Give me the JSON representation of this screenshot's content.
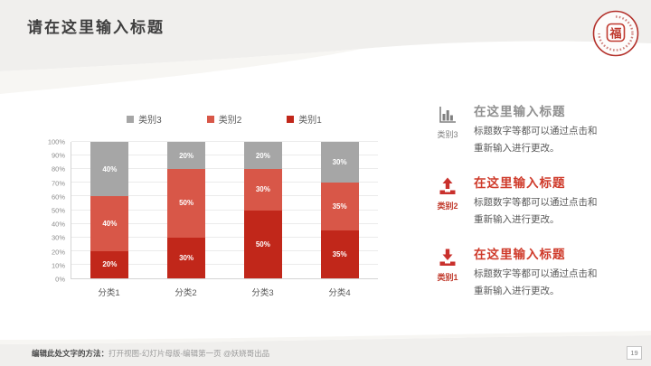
{
  "slide": {
    "title": "请在这里输入标题",
    "page_number": "19",
    "footer": {
      "bold": "编辑此处文字的方法：",
      "rest": "打开视图-幻灯片母版-编辑第一页 @妖娆哥出品"
    },
    "logo": {
      "char": "福"
    }
  },
  "colors": {
    "accent_red": "#cf3a2a",
    "dark_red": "#c1271a",
    "light_red": "#d85748",
    "gray": "#a6a6a6",
    "header_band": "#f0efed"
  },
  "chart_data": {
    "type": "bar",
    "stacked": true,
    "percent_stacked": true,
    "title": "",
    "xlabel": "",
    "ylabel": "",
    "categories": [
      "分类1",
      "分类2",
      "分类3",
      "分类4"
    ],
    "series": [
      {
        "name": "类别1",
        "color": "#c1271a",
        "values": [
          20,
          30,
          50,
          35
        ]
      },
      {
        "name": "类别2",
        "color": "#d85748",
        "values": [
          40,
          50,
          30,
          35
        ]
      },
      {
        "name": "类别3",
        "color": "#a6a6a6",
        "values": [
          40,
          20,
          20,
          30
        ]
      }
    ],
    "data_labels": true,
    "y_ticks": [
      "0%",
      "10%",
      "20%",
      "30%",
      "40%",
      "50%",
      "60%",
      "70%",
      "80%",
      "90%",
      "100%"
    ],
    "ylim": [
      0,
      100
    ],
    "grid": true,
    "legend_position": "top",
    "legend_order": [
      "类别3",
      "类别2",
      "类别1"
    ]
  },
  "panel": {
    "items": [
      {
        "icon": "bar-chart",
        "label": "类别3",
        "title": "在这里输入标题",
        "body1": "标题数字等都可以通过点击和",
        "body2": "重新输入进行更改。",
        "accent": "gray"
      },
      {
        "icon": "upload",
        "label": "类别2",
        "title": "在这里输入标题",
        "body1": "标题数字等都可以通过点击和",
        "body2": "重新输入进行更改。",
        "accent": "red"
      },
      {
        "icon": "download",
        "label": "类别1",
        "title": "在这里输入标题",
        "body1": "标题数字等都可以通过点击和",
        "body2": "重新输入进行更改。",
        "accent": "red"
      }
    ]
  }
}
